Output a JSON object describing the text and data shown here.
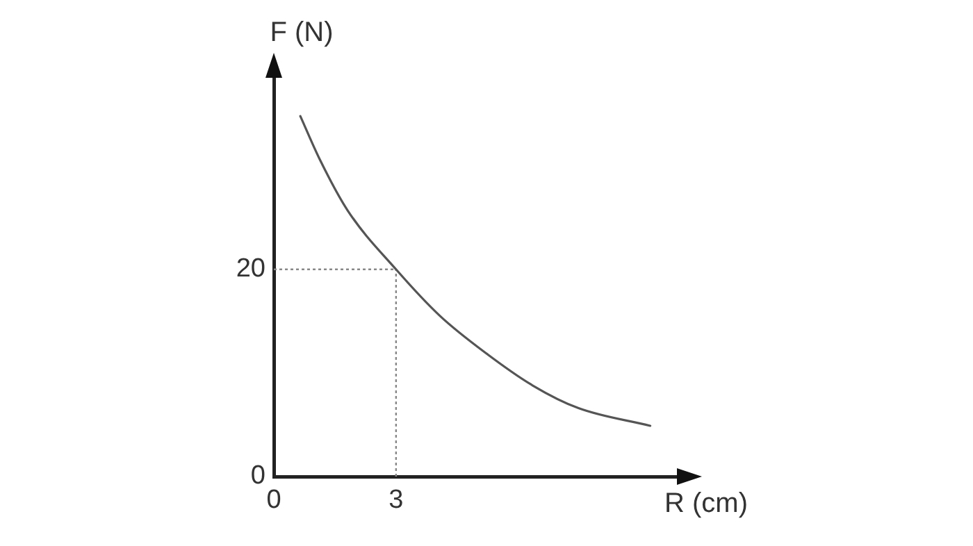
{
  "chart_data": {
    "type": "line",
    "xlabel": "R (cm)",
    "ylabel": "F (N)",
    "x": [
      0.65,
      1.13,
      1.81,
      3,
      4.08,
      5.21,
      6.35,
      7.48,
      9.24
    ],
    "series": [
      {
        "color": "#555555",
        "values": [
          34.8,
          30.6,
          25.7,
          20,
          15.5,
          11.9,
          8.8,
          6.6,
          4.9
        ]
      }
    ],
    "xlim": [
      0,
      10.1
    ],
    "ylim": [
      0,
      39.3
    ],
    "xticks": [
      0,
      3
    ],
    "yticks": [
      0,
      20
    ],
    "ref_lines": [
      {
        "axis": "x",
        "value": 3,
        "color": "#888888",
        "line_style": "dotted"
      },
      {
        "axis": "y",
        "value": 20,
        "color": "#888888",
        "line_style": "dotted"
      }
    ],
    "grid": false,
    "legend": false,
    "marker": "none",
    "line_style": "solid"
  }
}
